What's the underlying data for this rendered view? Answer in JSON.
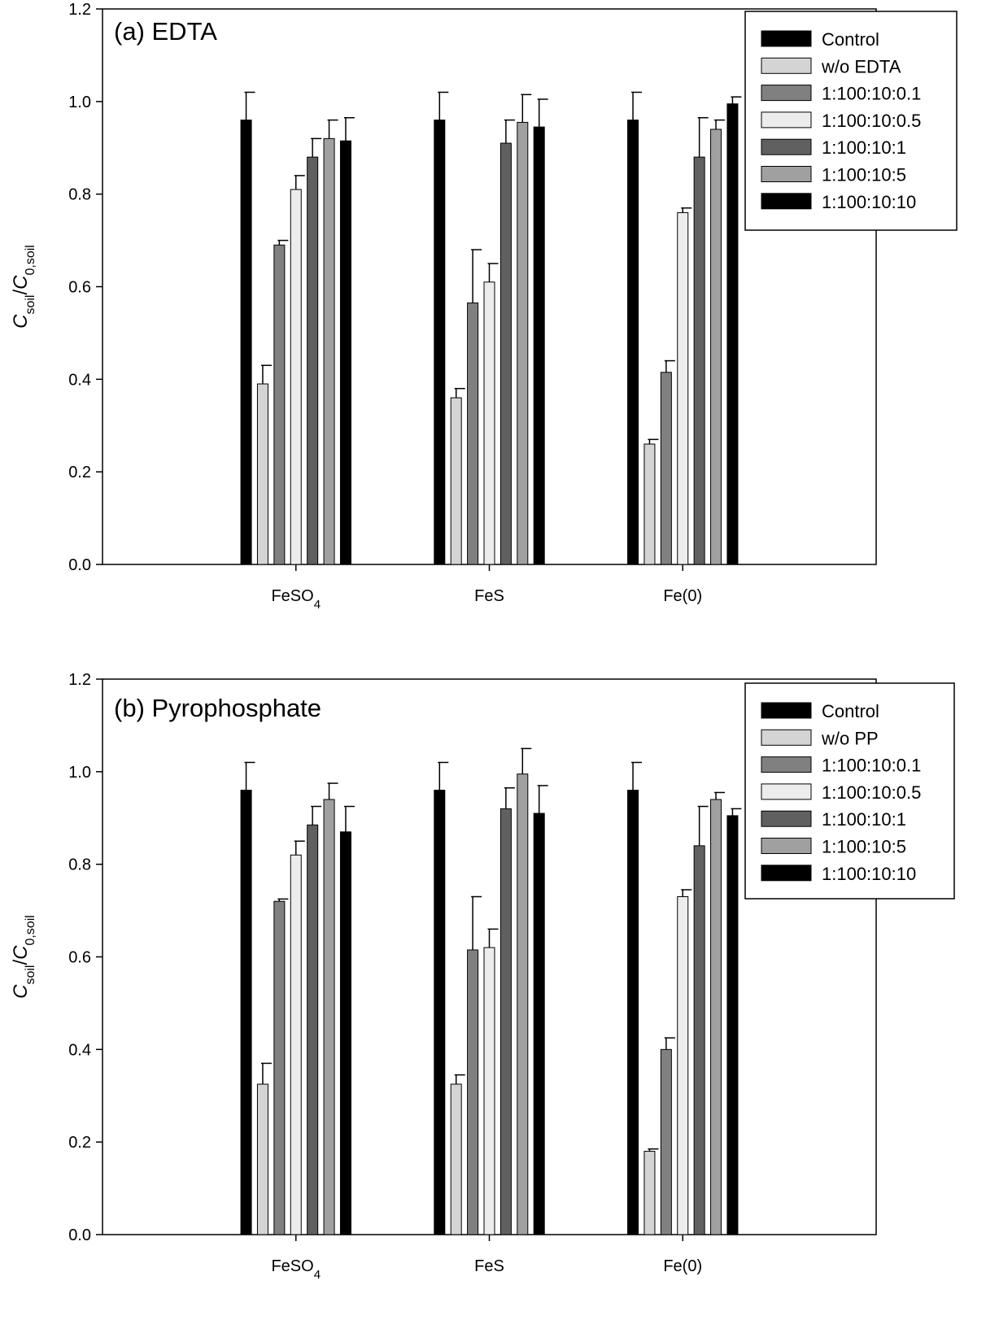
{
  "series_colors": [
    "#000000",
    "#d4d4d4",
    "#808080",
    "#ececec",
    "#606060",
    "#a0a0a0",
    "#000000"
  ],
  "chart_data": [
    {
      "type": "bar",
      "title": "(a) EDTA",
      "ylabel": {
        "c1": "C",
        "s1": "soil",
        "sep": "/",
        "c2": "C",
        "s2": "0,soil"
      },
      "ylim": [
        0,
        1.2
      ],
      "yticks": [
        "0.0",
        "0.2",
        "0.4",
        "0.6",
        "0.8",
        "1.0",
        "1.2"
      ],
      "categories": [
        "FeSO4",
        "FeS",
        "Fe(0)"
      ],
      "legend_position": "top-right",
      "series": [
        {
          "name": "Control",
          "values": [
            0.96,
            0.96,
            0.96
          ],
          "err_upper": [
            1.02,
            1.02,
            1.02
          ]
        },
        {
          "name": "w/o EDTA",
          "values": [
            0.39,
            0.36,
            0.26
          ],
          "err_upper": [
            0.43,
            0.38,
            0.27
          ]
        },
        {
          "name": "1:100:10:0.1",
          "values": [
            0.69,
            0.565,
            0.415
          ],
          "err_upper": [
            0.7,
            0.68,
            0.44
          ]
        },
        {
          "name": "1:100:10:0.5",
          "values": [
            0.81,
            0.61,
            0.76
          ],
          "err_upper": [
            0.84,
            0.65,
            0.77
          ]
        },
        {
          "name": "1:100:10:1",
          "values": [
            0.88,
            0.91,
            0.88
          ],
          "err_upper": [
            0.92,
            0.96,
            0.965
          ]
        },
        {
          "name": "1:100:10:5",
          "values": [
            0.92,
            0.955,
            0.94
          ],
          "err_upper": [
            0.96,
            1.015,
            0.96
          ]
        },
        {
          "name": "1:100:10:10",
          "values": [
            0.915,
            0.945,
            0.995
          ],
          "err_upper": [
            0.965,
            1.005,
            1.01
          ]
        }
      ]
    },
    {
      "type": "bar",
      "title": "(b) Pyrophosphate",
      "ylabel": {
        "c1": "C",
        "s1": "soil",
        "sep": "/",
        "c2": "C",
        "s2": "0,soil"
      },
      "ylim": [
        0,
        1.2
      ],
      "yticks": [
        "0.0",
        "0.2",
        "0.4",
        "0.6",
        "0.8",
        "1.0",
        "1.2"
      ],
      "categories": [
        "FeSO4",
        "FeS",
        "Fe(0)"
      ],
      "legend_position": "top-right",
      "series": [
        {
          "name": "Control",
          "values": [
            0.96,
            0.96,
            0.96
          ],
          "err_upper": [
            1.02,
            1.02,
            1.02
          ]
        },
        {
          "name": "w/o PP",
          "values": [
            0.325,
            0.325,
            0.18
          ],
          "err_upper": [
            0.37,
            0.345,
            0.185
          ]
        },
        {
          "name": "1:100:10:0.1",
          "values": [
            0.72,
            0.615,
            0.4
          ],
          "err_upper": [
            0.725,
            0.73,
            0.425
          ]
        },
        {
          "name": "1:100:10:0.5",
          "values": [
            0.82,
            0.62,
            0.73
          ],
          "err_upper": [
            0.85,
            0.66,
            0.745
          ]
        },
        {
          "name": "1:100:10:1",
          "values": [
            0.885,
            0.92,
            0.84
          ],
          "err_upper": [
            0.925,
            0.965,
            0.925
          ]
        },
        {
          "name": "1:100:10:5",
          "values": [
            0.94,
            0.995,
            0.94
          ],
          "err_upper": [
            0.975,
            1.05,
            0.955
          ]
        },
        {
          "name": "1:100:10:10",
          "values": [
            0.87,
            0.91,
            0.905
          ],
          "err_upper": [
            0.925,
            0.97,
            0.92
          ]
        }
      ]
    }
  ]
}
